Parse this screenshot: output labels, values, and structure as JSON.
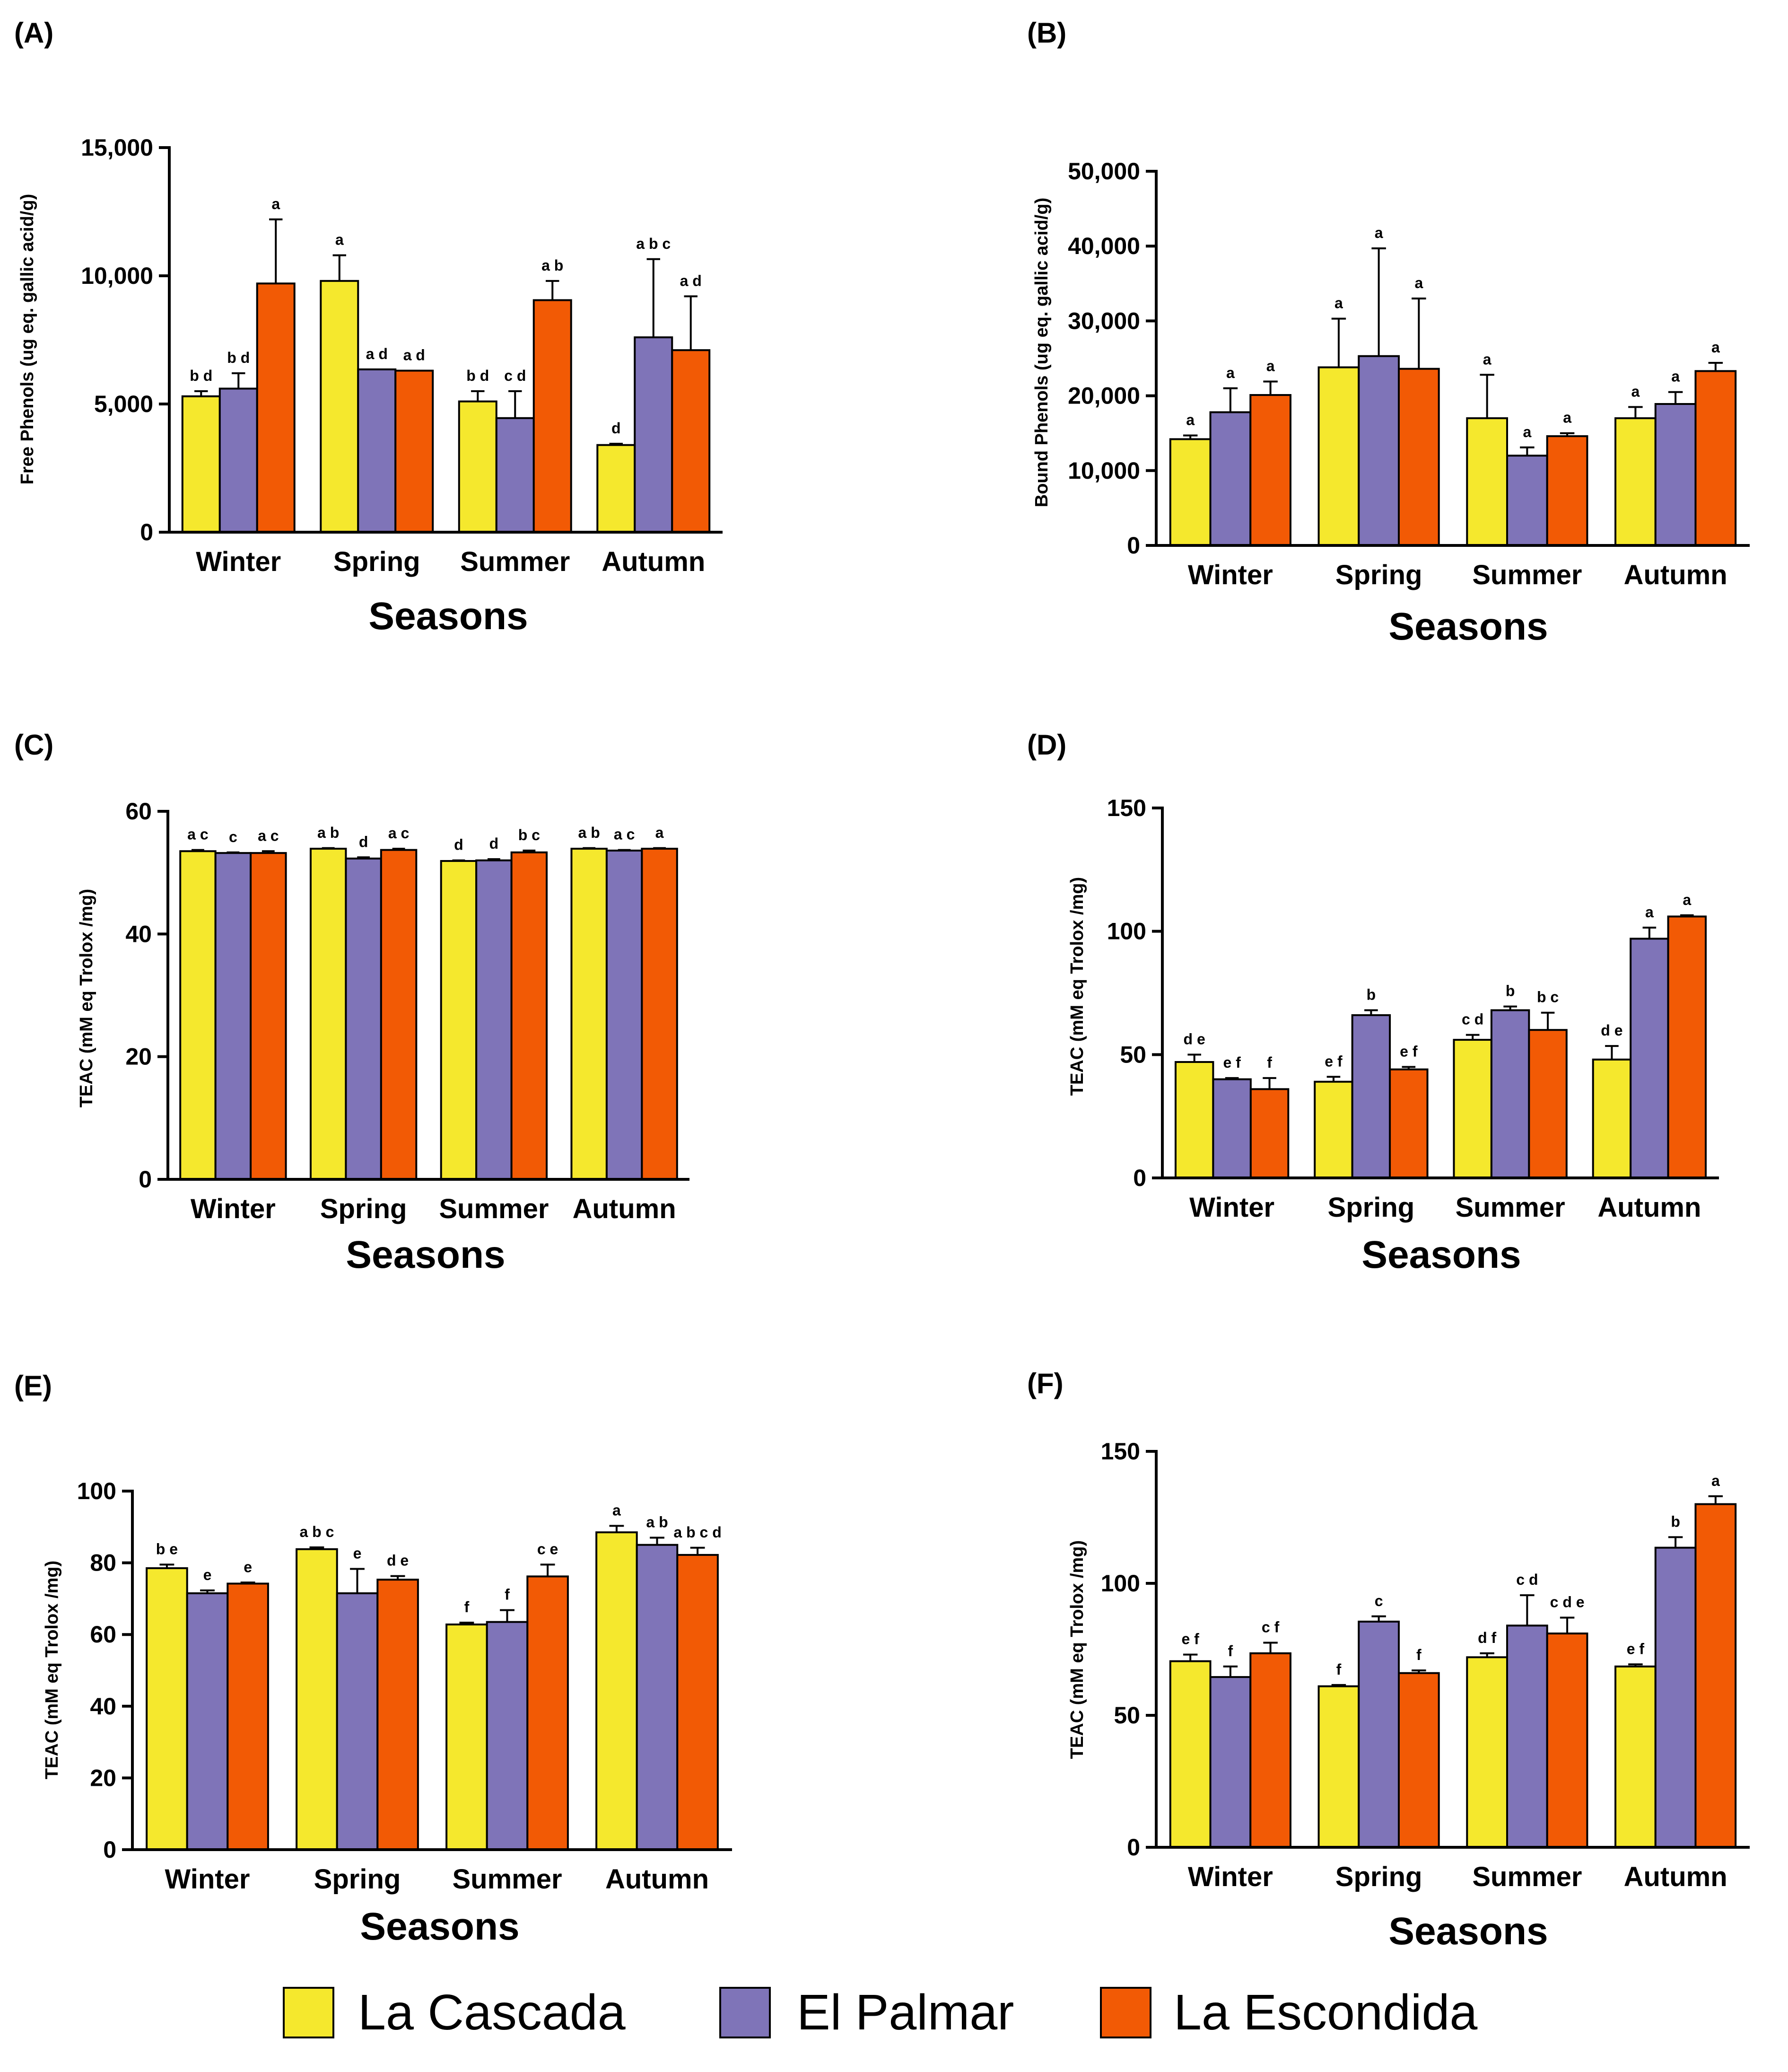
{
  "legend": {
    "items": [
      {
        "name": "La Cascada",
        "color": "#F5E82D"
      },
      {
        "name": "El Palmar",
        "color": "#7F74B8"
      },
      {
        "name": "La Escondida",
        "color": "#F25A05"
      }
    ]
  },
  "chart_data": [
    {
      "panel": "(A)",
      "type": "bar",
      "categories": [
        "Winter",
        "Spring",
        "Summer",
        "Autumn"
      ],
      "xlabel": "Seasons",
      "ylabel": "Free Phenols (ug eq. gallic acid/g)",
      "ylim": [
        0,
        15000
      ],
      "yticks": [
        0,
        5000,
        10000,
        15000
      ],
      "ytick_labels": [
        "0",
        "5,000",
        "10,000",
        "15,000"
      ],
      "series": [
        {
          "name": "La Cascada",
          "values": [
            5300,
            9800,
            5100,
            3400
          ],
          "errors": [
            200,
            1000,
            400,
            50
          ],
          "labels": [
            "b d",
            "a",
            "b d",
            "d"
          ]
        },
        {
          "name": "El Palmar",
          "values": [
            5600,
            6350,
            4450,
            7600
          ],
          "errors": [
            600,
            0,
            1050,
            3050
          ],
          "labels": [
            "b d",
            "a d",
            "c d",
            "a b c"
          ]
        },
        {
          "name": "La Escondida",
          "values": [
            9700,
            6300,
            9050,
            7100
          ],
          "errors": [
            2500,
            0,
            750,
            2100
          ],
          "labels": [
            "a",
            "a d",
            "a b",
            "a d"
          ]
        }
      ]
    },
    {
      "panel": "(B)",
      "type": "bar",
      "categories": [
        "Winter",
        "Spring",
        "Summer",
        "Autumn"
      ],
      "xlabel": "Seasons",
      "ylabel": "Bound Phenols (ug eq. gallic acid/g)",
      "ylim": [
        0,
        50000
      ],
      "yticks": [
        0,
        10000,
        20000,
        30000,
        40000,
        50000
      ],
      "ytick_labels": [
        "0",
        "10,000",
        "20,000",
        "30,000",
        "40,000",
        "50,000"
      ],
      "series": [
        {
          "name": "La Cascada",
          "values": [
            14200,
            23800,
            17000,
            17000
          ],
          "errors": [
            500,
            6500,
            5800,
            1500
          ],
          "labels": [
            "a",
            "a",
            "a",
            "a"
          ]
        },
        {
          "name": "El Palmar",
          "values": [
            17800,
            25300,
            12000,
            18900
          ],
          "errors": [
            3200,
            14400,
            1100,
            1600
          ],
          "labels": [
            "a",
            "a",
            "a",
            "a"
          ]
        },
        {
          "name": "La Escondida",
          "values": [
            20100,
            23600,
            14600,
            23300
          ],
          "errors": [
            1800,
            9400,
            400,
            1100
          ],
          "labels": [
            "a",
            "a",
            "a",
            "a"
          ]
        }
      ]
    },
    {
      "panel": "(C)",
      "type": "bar",
      "categories": [
        "Winter",
        "Spring",
        "Summer",
        "Autumn"
      ],
      "xlabel": "Seasons",
      "ylabel": "TEAC (mM eq Trolox /mg)",
      "ylim": [
        0,
        60
      ],
      "yticks": [
        0,
        20,
        40,
        60
      ],
      "ytick_labels": [
        "0",
        "20",
        "40",
        "60"
      ],
      "series": [
        {
          "name": "La Cascada",
          "values": [
            53.5,
            53.9,
            51.9,
            53.9
          ],
          "errors": [
            0.2,
            0.1,
            0.1,
            0.1
          ],
          "labels": [
            "a c",
            "a b",
            "d",
            "a b"
          ]
        },
        {
          "name": "El Palmar",
          "values": [
            53.2,
            52.3,
            52.0,
            53.6
          ],
          "errors": [
            0.1,
            0.2,
            0.2,
            0.1
          ],
          "labels": [
            "c",
            "d",
            "d",
            "a c"
          ]
        },
        {
          "name": "La Escondida",
          "values": [
            53.2,
            53.7,
            53.3,
            53.9
          ],
          "errors": [
            0.3,
            0.2,
            0.3,
            0.1
          ],
          "labels": [
            "a c",
            "a c",
            "b c",
            "a"
          ]
        }
      ]
    },
    {
      "panel": "(D)",
      "type": "bar",
      "categories": [
        "Winter",
        "Spring",
        "Summer",
        "Autumn"
      ],
      "xlabel": "Seasons",
      "ylabel": "TEAC (mM eq Trolox /mg)",
      "ylim": [
        0,
        150
      ],
      "yticks": [
        0,
        50,
        100,
        150
      ],
      "ytick_labels": [
        "0",
        "50",
        "100",
        "150"
      ],
      "series": [
        {
          "name": "La Cascada",
          "values": [
            47,
            39,
            56,
            48
          ],
          "errors": [
            3,
            2,
            2,
            5.5
          ],
          "labels": [
            "d e",
            "e f",
            "c d",
            "d e"
          ]
        },
        {
          "name": "El Palmar",
          "values": [
            40,
            66,
            68,
            97
          ],
          "errors": [
            0.5,
            2,
            1.5,
            4.5
          ],
          "labels": [
            "e f",
            "b",
            "b",
            "a"
          ]
        },
        {
          "name": "La Escondida",
          "values": [
            36,
            44,
            60,
            106
          ],
          "errors": [
            4.5,
            1,
            7,
            0.5
          ],
          "labels": [
            "f",
            "e f",
            "b c",
            "a"
          ]
        }
      ]
    },
    {
      "panel": "(E)",
      "type": "bar",
      "categories": [
        "Winter",
        "Spring",
        "Summer",
        "Autumn"
      ],
      "xlabel": "Seasons",
      "ylabel": "TEAC (mM eq Trolox /mg)",
      "ylim": [
        0,
        100
      ],
      "yticks": [
        0,
        20,
        40,
        60,
        80,
        100
      ],
      "ytick_labels": [
        "0",
        "20",
        "40",
        "60",
        "80",
        "100"
      ],
      "series": [
        {
          "name": "La Cascada",
          "values": [
            78.5,
            83.8,
            62.8,
            88.5
          ],
          "errors": [
            1,
            0.5,
            0.5,
            1.8
          ],
          "labels": [
            "b e",
            "a b c",
            "f",
            "a"
          ]
        },
        {
          "name": "El Palmar",
          "values": [
            71.5,
            71.5,
            63.5,
            85
          ],
          "errors": [
            0.8,
            6.8,
            3.3,
            2
          ],
          "labels": [
            "e",
            "e",
            "f",
            "a b"
          ]
        },
        {
          "name": "La Escondida",
          "values": [
            74.2,
            75.3,
            76.2,
            82.2
          ],
          "errors": [
            0.3,
            1,
            3.3,
            2
          ],
          "labels": [
            "e",
            "d e",
            "c e",
            "a b c d"
          ]
        }
      ]
    },
    {
      "panel": "(F)",
      "type": "bar",
      "categories": [
        "Winter",
        "Spring",
        "Summer",
        "Autumn"
      ],
      "xlabel": "Seasons",
      "ylabel": "TEAC (mM eq Trolox /mg)",
      "ylim": [
        0,
        150
      ],
      "yticks": [
        0,
        50,
        100,
        150
      ],
      "ytick_labels": [
        "0",
        "50",
        "100",
        "150"
      ],
      "series": [
        {
          "name": "La Cascada",
          "values": [
            70.5,
            61,
            72,
            68.5
          ],
          "errors": [
            2.5,
            0.5,
            1.5,
            0.8
          ],
          "labels": [
            "e f",
            "f",
            "d f",
            "e f"
          ]
        },
        {
          "name": "El Palmar",
          "values": [
            64.5,
            85.5,
            84,
            113.5
          ],
          "errors": [
            4,
            2,
            11.5,
            4
          ],
          "labels": [
            "f",
            "c",
            "c d",
            "b"
          ]
        },
        {
          "name": "La Escondida",
          "values": [
            73.5,
            66,
            81,
            130
          ],
          "errors": [
            4,
            1,
            6,
            3
          ],
          "labels": [
            "c f",
            "f",
            "c d e",
            "a"
          ]
        }
      ]
    }
  ]
}
